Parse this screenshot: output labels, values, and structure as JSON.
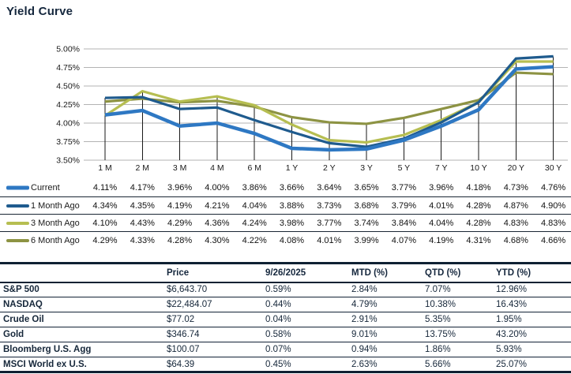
{
  "title": "Yield Curve",
  "colors": {
    "current": "#2E78C3",
    "one_month": "#1F5B8E",
    "three_month": "#B6BE51",
    "six_month": "#8D9343",
    "navy_text": "#15273D",
    "gridline": "#b3b3b3",
    "dropline": "#1a1a1a"
  },
  "chart_data": {
    "type": "line",
    "title": "Yield Curve",
    "categories": [
      "1 M",
      "2 M",
      "3 M",
      "4 M",
      "6 M",
      "1 Y",
      "2 Y",
      "3 Y",
      "5 Y",
      "7 Y",
      "10 Y",
      "20 Y",
      "30 Y"
    ],
    "series": [
      {
        "name": "Current",
        "color_key": "current",
        "values": [
          4.11,
          4.17,
          3.96,
          4.0,
          3.86,
          3.66,
          3.64,
          3.65,
          3.77,
          3.96,
          4.18,
          4.73,
          4.76
        ]
      },
      {
        "name": "1 Month Ago",
        "color_key": "one_month",
        "values": [
          4.34,
          4.35,
          4.19,
          4.21,
          4.04,
          3.88,
          3.73,
          3.68,
          3.79,
          4.01,
          4.28,
          4.87,
          4.9
        ]
      },
      {
        "name": "3 Month Ago",
        "color_key": "three_month",
        "values": [
          4.1,
          4.43,
          4.29,
          4.36,
          4.24,
          3.98,
          3.77,
          3.74,
          3.84,
          4.04,
          4.28,
          4.83,
          4.83
        ]
      },
      {
        "name": "6 Month Ago",
        "color_key": "six_month",
        "values": [
          4.29,
          4.33,
          4.28,
          4.3,
          4.22,
          4.08,
          4.01,
          3.99,
          4.07,
          4.19,
          4.31,
          4.68,
          4.66
        ]
      }
    ],
    "ylim": [
      3.5,
      5.0
    ],
    "ytick_step": 0.25,
    "ytick_labels": [
      "3.50%",
      "3.75%",
      "4.00%",
      "4.25%",
      "4.50%",
      "4.75%",
      "5.00%"
    ],
    "grid": "horizontal gridlines with vertical drop lines at each maturity",
    "legend_position": "bottom-table",
    "value_suffix": "%"
  },
  "market_table": {
    "headers": [
      "",
      "Price",
      "9/26/2025",
      "MTD (%)",
      "QTD (%)",
      "YTD (%)"
    ],
    "rows": [
      {
        "label": "S&P 500",
        "cells": [
          "$6,643.70",
          "0.59%",
          "2.84%",
          "7.07%",
          "12.96%"
        ]
      },
      {
        "label": "NASDAQ",
        "cells": [
          "$22,484.07",
          "0.44%",
          "4.79%",
          "10.38%",
          "16.43%"
        ]
      },
      {
        "label": "Crude Oil",
        "cells": [
          "$77.02",
          "0.04%",
          "2.91%",
          "5.35%",
          "1.95%"
        ]
      },
      {
        "label": "Gold",
        "cells": [
          "$346.74",
          "0.58%",
          "9.01%",
          "13.75%",
          "43.20%"
        ]
      },
      {
        "label": "Bloomberg U.S. Agg",
        "cells": [
          "$100.07",
          "0.07%",
          "0.94%",
          "1.86%",
          "5.93%"
        ]
      },
      {
        "label": "MSCI World ex U.S.",
        "cells": [
          "$64.39",
          "0.45%",
          "2.63%",
          "5.66%",
          "25.07%"
        ]
      }
    ]
  }
}
